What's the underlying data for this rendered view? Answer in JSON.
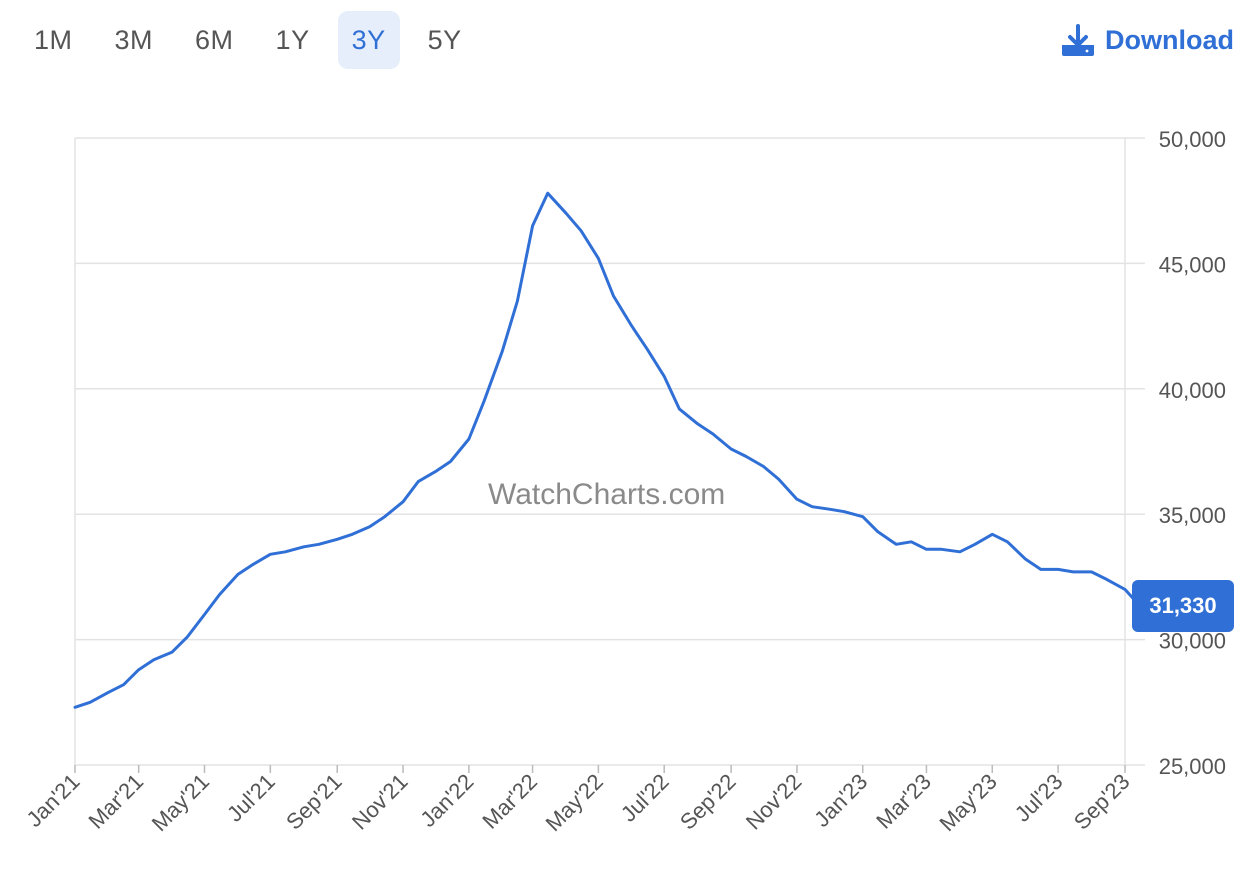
{
  "range_tabs": {
    "items": [
      "1M",
      "3M",
      "6M",
      "1Y",
      "3Y",
      "5Y"
    ],
    "active": "3Y"
  },
  "download": {
    "label": "Download",
    "icon": "download-icon"
  },
  "watermark": "WatchCharts.com",
  "current_price_label": "31,330",
  "colors": {
    "line": "#2f6fd6",
    "accent": "#2f6fd6",
    "active_tab_bg": "#e6eefb",
    "grid": "#e3e3e3",
    "axis_text": "#555555"
  },
  "chart_data": {
    "type": "line",
    "title": "",
    "xlabel": "",
    "ylabel": "",
    "ylim": [
      25000,
      50000
    ],
    "xlim": [
      "2021-01",
      "2023-09"
    ],
    "y_ticks": [
      50000,
      45000,
      40000,
      35000,
      30000,
      25000
    ],
    "y_tick_labels": [
      "50,000",
      "45,000",
      "40,000",
      "35,000",
      "30,000",
      "25,000"
    ],
    "y_axis_position": "right",
    "x_tick_labels": [
      "Jan'21",
      "Mar'21",
      "May'21",
      "Jul'21",
      "Sep'21",
      "Nov'21",
      "Jan'22",
      "Mar'22",
      "May'22",
      "Jul'22",
      "Sep'22",
      "Nov'22",
      "Jan'23",
      "Mar'23",
      "May'23",
      "Jul'23",
      "Sep'23"
    ],
    "grid": true,
    "legend": "none",
    "series": [
      {
        "x": [
          "2021-01-01",
          "2021-01-15",
          "2021-02-01",
          "2021-02-15",
          "2021-03-01",
          "2021-03-15",
          "2021-04-01",
          "2021-04-15",
          "2021-05-01",
          "2021-05-15",
          "2021-06-01",
          "2021-06-15",
          "2021-07-01",
          "2021-07-15",
          "2021-08-01",
          "2021-08-15",
          "2021-09-01",
          "2021-09-15",
          "2021-10-01",
          "2021-10-15",
          "2021-11-01",
          "2021-11-15",
          "2021-12-01",
          "2021-12-15",
          "2022-01-01",
          "2022-01-15",
          "2022-02-01",
          "2022-02-15",
          "2022-03-01",
          "2022-03-15",
          "2022-04-01",
          "2022-04-15",
          "2022-05-01",
          "2022-05-15",
          "2022-06-01",
          "2022-06-15",
          "2022-07-01",
          "2022-07-15",
          "2022-08-01",
          "2022-08-15",
          "2022-09-01",
          "2022-09-15",
          "2022-10-01",
          "2022-10-15",
          "2022-11-01",
          "2022-11-15",
          "2022-12-01",
          "2022-12-15",
          "2023-01-01",
          "2023-01-15",
          "2023-02-01",
          "2023-02-15",
          "2023-03-01",
          "2023-03-15",
          "2023-04-01",
          "2023-04-15",
          "2023-05-01",
          "2023-05-15",
          "2023-06-01",
          "2023-06-15",
          "2023-07-01",
          "2023-07-15",
          "2023-08-01",
          "2023-08-15",
          "2023-09-01",
          "2023-09-15"
        ],
        "y": [
          27300,
          27500,
          27900,
          28200,
          28800,
          29200,
          29500,
          30100,
          31000,
          31800,
          32600,
          33000,
          33400,
          33500,
          33700,
          33800,
          34000,
          34200,
          34500,
          34900,
          35500,
          36300,
          36700,
          37100,
          38000,
          39500,
          41500,
          43500,
          46500,
          47800,
          47000,
          46300,
          45200,
          43700,
          42500,
          41600,
          40500,
          39200,
          38600,
          38200,
          37600,
          37300,
          36900,
          36400,
          35600,
          35300,
          35200,
          35100,
          34900,
          34300,
          33800,
          33900,
          33600,
          33600,
          33500,
          33800,
          34200,
          33900,
          33200,
          32800,
          32800,
          32700,
          32700,
          32400,
          32000,
          31330
        ]
      }
    ],
    "last_value": 31330,
    "annotations": [
      "WatchCharts.com"
    ]
  }
}
